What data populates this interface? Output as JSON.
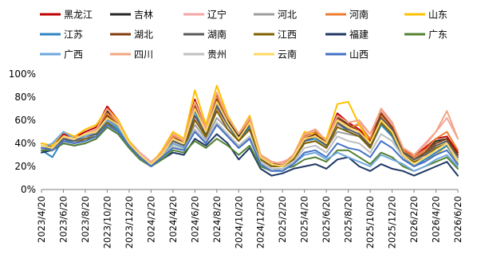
{
  "chart_data": {
    "type": "line",
    "title": "",
    "xlabel": "",
    "ylabel": "",
    "ylim": [
      0,
      100
    ],
    "y_ticks": [
      "0%",
      "20%",
      "40%",
      "60%",
      "80%",
      "100%"
    ],
    "x": [
      "2023/4/20",
      "2023/5/20",
      "2023/6/20",
      "2023/7/20",
      "2023/8/20",
      "2023/9/20",
      "2023/10/20",
      "2023/11/20",
      "2023/12/20",
      "2024/1/20",
      "2024/2/20",
      "2024/3/20",
      "2024/4/20",
      "2024/5/20",
      "2024/6/20",
      "2024/7/20",
      "2024/8/20",
      "2024/9/20",
      "2024/10/20",
      "2024/11/20",
      "2024/12/20",
      "2025/1/20",
      "2025/2/20",
      "2025/3/20",
      "2025/4/20",
      "2025/5/20",
      "2025/6/20",
      "2025/7/20",
      "2025/8/20",
      "2025/9/20",
      "2025/10/20",
      "2025/11/20",
      "2025/12/20",
      "2026/1/20",
      "2026/2/20",
      "2026/3/20",
      "2026/4/20",
      "2026/5/20",
      "2026/6/20"
    ],
    "x_tick_labels": [
      "2023/4/20",
      "2023/6/20",
      "2023/8/20",
      "2023/10/20",
      "2023/12/20",
      "2024/2/20",
      "2024/4/20",
      "2024/6/20",
      "2024/8/20",
      "2024/10/20",
      "2024/12/20",
      "2025/2/20",
      "2025/4/20",
      "2025/6/20",
      "2025/8/20",
      "2025/10/20",
      "2025/12/20",
      "2026/2/20",
      "2026/4/20",
      "2026/6/20"
    ],
    "grid": false,
    "legend_position": "top",
    "series": [
      {
        "name": "黑龙江",
        "color": "#c00000",
        "values": [
          38,
          36,
          48,
          45,
          50,
          54,
          72,
          60,
          40,
          30,
          22,
          32,
          48,
          42,
          78,
          52,
          82,
          62,
          48,
          62,
          30,
          24,
          22,
          30,
          48,
          52,
          42,
          66,
          58,
          52,
          42,
          70,
          58,
          34,
          30,
          36,
          44,
          46,
          32
        ]
      },
      {
        "name": "吉林",
        "color": "#262626",
        "values": [
          36,
          38,
          46,
          44,
          48,
          52,
          68,
          58,
          40,
          30,
          22,
          30,
          46,
          40,
          74,
          50,
          80,
          60,
          46,
          60,
          28,
          22,
          20,
          28,
          46,
          50,
          40,
          64,
          56,
          50,
          40,
          68,
          56,
          32,
          28,
          34,
          42,
          44,
          30
        ]
      },
      {
        "name": "辽宁",
        "color": "#f4a6a6",
        "values": [
          40,
          38,
          44,
          46,
          46,
          50,
          62,
          56,
          42,
          32,
          24,
          32,
          42,
          38,
          62,
          48,
          70,
          56,
          44,
          56,
          28,
          22,
          24,
          28,
          42,
          46,
          40,
          56,
          52,
          58,
          48,
          68,
          56,
          36,
          30,
          40,
          50,
          62,
          44
        ]
      },
      {
        "name": "河北",
        "color": "#9e9e9e",
        "values": [
          38,
          36,
          44,
          42,
          44,
          48,
          58,
          52,
          40,
          30,
          22,
          30,
          40,
          36,
          56,
          44,
          62,
          52,
          42,
          52,
          26,
          20,
          20,
          26,
          40,
          42,
          36,
          50,
          48,
          46,
          38,
          58,
          50,
          32,
          26,
          30,
          38,
          42,
          30
        ]
      },
      {
        "name": "河南",
        "color": "#ed7d31",
        "values": [
          38,
          36,
          46,
          44,
          48,
          52,
          66,
          58,
          40,
          30,
          22,
          32,
          46,
          42,
          74,
          52,
          80,
          62,
          48,
          60,
          30,
          24,
          22,
          30,
          46,
          50,
          42,
          60,
          54,
          56,
          44,
          64,
          54,
          34,
          28,
          34,
          44,
          50,
          34
        ]
      },
      {
        "name": "山东",
        "color": "#ffc000",
        "values": [
          40,
          38,
          50,
          46,
          52,
          56,
          70,
          60,
          42,
          30,
          22,
          34,
          50,
          44,
          86,
          56,
          90,
          64,
          48,
          64,
          30,
          22,
          22,
          30,
          50,
          48,
          44,
          74,
          76,
          56,
          40,
          60,
          48,
          30,
          20,
          26,
          30,
          38,
          22
        ]
      },
      {
        "name": "江苏",
        "color": "#2e86c1",
        "values": [
          34,
          28,
          44,
          40,
          44,
          46,
          60,
          52,
          38,
          28,
          20,
          28,
          40,
          36,
          68,
          46,
          74,
          56,
          42,
          54,
          26,
          20,
          20,
          26,
          42,
          44,
          38,
          58,
          50,
          46,
          36,
          56,
          46,
          28,
          20,
          26,
          32,
          38,
          24
        ]
      },
      {
        "name": "湖北",
        "color": "#843c0c",
        "values": [
          36,
          36,
          46,
          44,
          46,
          50,
          64,
          56,
          40,
          30,
          22,
          30,
          44,
          40,
          72,
          50,
          78,
          58,
          44,
          58,
          28,
          22,
          22,
          28,
          44,
          48,
          40,
          62,
          56,
          50,
          40,
          66,
          54,
          32,
          26,
          32,
          40,
          44,
          30
        ]
      },
      {
        "name": "湖南",
        "color": "#595959",
        "values": [
          36,
          36,
          44,
          42,
          46,
          48,
          62,
          54,
          40,
          30,
          22,
          30,
          42,
          38,
          64,
          48,
          72,
          56,
          44,
          56,
          28,
          22,
          20,
          28,
          42,
          46,
          38,
          58,
          52,
          48,
          38,
          62,
          52,
          32,
          26,
          30,
          38,
          42,
          28
        ]
      },
      {
        "name": "江西",
        "color": "#7f6000",
        "values": [
          34,
          34,
          42,
          40,
          44,
          46,
          58,
          50,
          38,
          28,
          20,
          28,
          40,
          36,
          60,
          46,
          68,
          52,
          42,
          52,
          26,
          20,
          20,
          26,
          40,
          42,
          36,
          54,
          50,
          46,
          36,
          58,
          48,
          30,
          24,
          28,
          36,
          40,
          26
        ]
      },
      {
        "name": "福建",
        "color": "#1f3864",
        "values": [
          32,
          34,
          40,
          38,
          40,
          44,
          54,
          48,
          36,
          26,
          20,
          26,
          32,
          30,
          44,
          38,
          48,
          40,
          26,
          36,
          18,
          12,
          14,
          18,
          20,
          22,
          18,
          26,
          28,
          20,
          16,
          22,
          18,
          16,
          12,
          16,
          20,
          24,
          12
        ]
      },
      {
        "name": "广东",
        "color": "#548235",
        "values": [
          34,
          34,
          40,
          38,
          40,
          44,
          54,
          48,
          36,
          26,
          20,
          26,
          34,
          32,
          42,
          36,
          44,
          38,
          30,
          38,
          20,
          16,
          18,
          20,
          26,
          28,
          24,
          34,
          34,
          28,
          22,
          32,
          28,
          20,
          16,
          20,
          24,
          28,
          18
        ]
      },
      {
        "name": "广西",
        "color": "#6fa8dc",
        "values": [
          36,
          40,
          50,
          44,
          46,
          50,
          60,
          54,
          40,
          30,
          22,
          30,
          40,
          36,
          52,
          42,
          56,
          46,
          36,
          44,
          22,
          16,
          18,
          22,
          30,
          32,
          26,
          32,
          28,
          24,
          20,
          30,
          26,
          22,
          16,
          20,
          26,
          30,
          20
        ]
      },
      {
        "name": "四川",
        "color": "#f4a582",
        "values": [
          38,
          36,
          46,
          44,
          48,
          52,
          70,
          58,
          40,
          30,
          22,
          32,
          48,
          42,
          76,
          52,
          84,
          62,
          48,
          62,
          30,
          24,
          22,
          30,
          48,
          52,
          42,
          64,
          58,
          60,
          48,
          70,
          58,
          36,
          30,
          38,
          50,
          68,
          44
        ]
      },
      {
        "name": "贵州",
        "color": "#bfbfbf",
        "values": [
          36,
          34,
          42,
          40,
          42,
          46,
          56,
          50,
          38,
          28,
          20,
          28,
          38,
          34,
          52,
          42,
          58,
          48,
          38,
          46,
          24,
          18,
          18,
          24,
          36,
          38,
          32,
          46,
          42,
          40,
          32,
          48,
          42,
          28,
          22,
          28,
          34,
          40,
          26
        ]
      },
      {
        "name": "云南",
        "color": "#ffd966",
        "values": [
          38,
          36,
          46,
          44,
          48,
          50,
          62,
          56,
          40,
          30,
          22,
          30,
          44,
          40,
          70,
          50,
          76,
          58,
          44,
          58,
          28,
          22,
          20,
          28,
          44,
          46,
          40,
          60,
          54,
          50,
          40,
          60,
          50,
          30,
          22,
          28,
          34,
          40,
          24
        ]
      },
      {
        "name": "山西",
        "color": "#4472c4",
        "values": [
          36,
          34,
          42,
          40,
          42,
          46,
          56,
          50,
          38,
          28,
          20,
          28,
          36,
          34,
          50,
          40,
          56,
          46,
          36,
          44,
          22,
          16,
          16,
          22,
          32,
          34,
          28,
          40,
          36,
          34,
          28,
          42,
          36,
          26,
          20,
          24,
          30,
          34,
          22
        ]
      }
    ]
  }
}
